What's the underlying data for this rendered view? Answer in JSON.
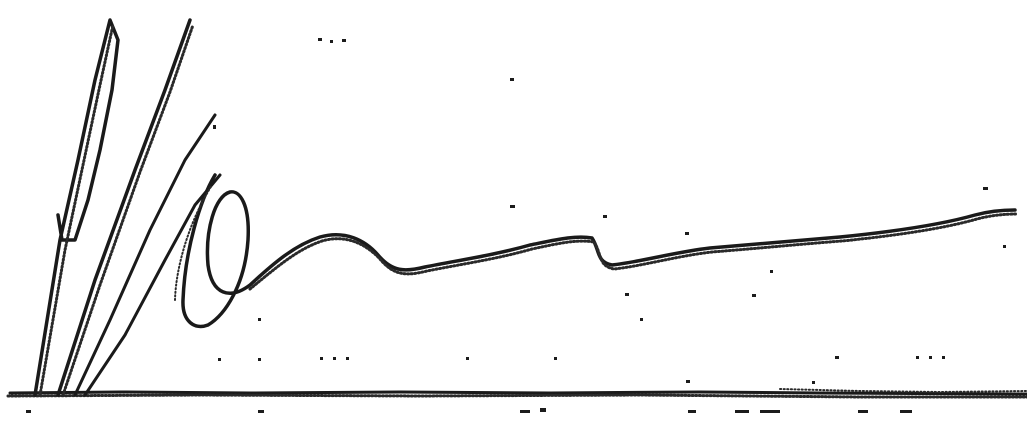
{
  "image": {
    "background_color": "#ffffff",
    "ink_color": "#1a1a1a"
  }
}
